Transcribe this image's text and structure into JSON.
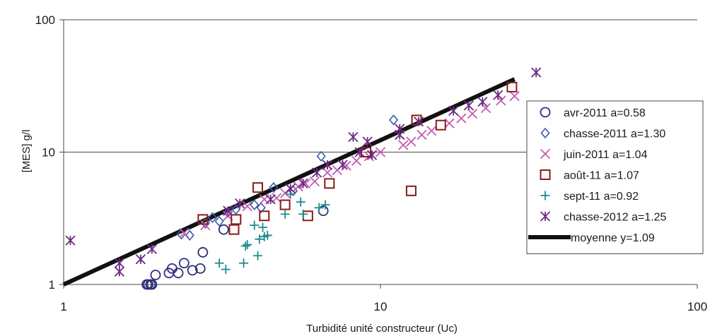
{
  "chart_data": {
    "type": "scatter",
    "xlabel": "Turbidité unité constructeur (Uc)",
    "ylabel": "[MES] g/l",
    "xscale": "log",
    "yscale": "log",
    "xlim": [
      1,
      100
    ],
    "ylim": [
      1,
      100
    ],
    "x_ticks": [
      "1",
      "10",
      "100"
    ],
    "y_ticks": [
      "1",
      "10",
      "100"
    ],
    "grid": "horizontal",
    "legend": "right",
    "series": [
      {
        "name": "avr-2011 a=0.58",
        "marker": "circle",
        "color": "#2e2e7a",
        "points": [
          [
            1.83,
            1.0
          ],
          [
            1.85,
            1.0
          ],
          [
            1.88,
            1.0
          ],
          [
            1.9,
            1.0
          ],
          [
            1.95,
            1.18
          ],
          [
            2.15,
            1.22
          ],
          [
            2.2,
            1.32
          ],
          [
            2.3,
            1.22
          ],
          [
            2.4,
            1.45
          ],
          [
            2.55,
            1.28
          ],
          [
            2.7,
            1.32
          ],
          [
            2.75,
            1.75
          ],
          [
            3.2,
            2.6
          ],
          [
            6.6,
            3.6
          ]
        ]
      },
      {
        "name": "chasse-2011 a=1.30",
        "marker": "diamond",
        "color": "#3a5ca8",
        "points": [
          [
            2.35,
            2.4
          ],
          [
            2.5,
            2.35
          ],
          [
            2.8,
            2.9
          ],
          [
            2.95,
            3.2
          ],
          [
            3.1,
            3.0
          ],
          [
            3.3,
            3.5
          ],
          [
            3.5,
            3.7
          ],
          [
            4.0,
            4.0
          ],
          [
            4.2,
            3.8
          ],
          [
            4.6,
            5.4
          ],
          [
            5.3,
            5.1
          ],
          [
            6.5,
            9.3
          ],
          [
            11.0,
            17.5
          ]
        ]
      },
      {
        "name": "juin-2011 a=1.04",
        "marker": "x",
        "color": "#c45ab3",
        "points": [
          [
            2.4,
            2.45
          ],
          [
            2.8,
            2.8
          ],
          [
            3.3,
            3.3
          ],
          [
            3.8,
            3.9
          ],
          [
            4.3,
            4.4
          ],
          [
            4.7,
            4.5
          ],
          [
            5.0,
            4.9
          ],
          [
            5.5,
            5.5
          ],
          [
            5.8,
            5.8
          ],
          [
            6.2,
            6.0
          ],
          [
            6.8,
            7.0
          ],
          [
            7.3,
            7.3
          ],
          [
            7.8,
            7.9
          ],
          [
            8.4,
            8.6
          ],
          [
            9.2,
            9.3
          ],
          [
            10.0,
            10.0
          ],
          [
            11.8,
            11.3
          ],
          [
            12.5,
            12.0
          ],
          [
            13.5,
            13.5
          ],
          [
            14.5,
            14.5
          ],
          [
            16.5,
            16.5
          ],
          [
            18.0,
            18.0
          ],
          [
            19.5,
            19.5
          ],
          [
            21.5,
            21.5
          ],
          [
            24.0,
            24.5
          ],
          [
            26.5,
            26.5
          ]
        ]
      },
      {
        "name": "août-11 a=1.07",
        "marker": "square",
        "color": "#8b1a1a",
        "points": [
          [
            2.75,
            3.1
          ],
          [
            3.5,
            3.1
          ],
          [
            3.45,
            2.6
          ],
          [
            4.1,
            5.4
          ],
          [
            4.3,
            3.3
          ],
          [
            5.0,
            4.0
          ],
          [
            5.9,
            3.3
          ],
          [
            6.9,
            5.8
          ],
          [
            9.0,
            10.0
          ],
          [
            12.5,
            5.1
          ],
          [
            13.0,
            17.5
          ],
          [
            15.5,
            16.0
          ],
          [
            26.0,
            31.0
          ]
        ]
      },
      {
        "name": "sept-11 a=0.92",
        "marker": "plus",
        "color": "#1f8a8a",
        "points": [
          [
            3.1,
            1.45
          ],
          [
            3.25,
            1.3
          ],
          [
            3.7,
            1.45
          ],
          [
            3.8,
            2.0
          ],
          [
            3.75,
            1.95
          ],
          [
            4.0,
            2.8
          ],
          [
            4.15,
            2.2
          ],
          [
            4.25,
            2.7
          ],
          [
            4.3,
            2.3
          ],
          [
            4.4,
            2.35
          ],
          [
            4.1,
            1.65
          ],
          [
            5.0,
            3.4
          ],
          [
            5.2,
            4.8
          ],
          [
            5.6,
            4.2
          ],
          [
            5.7,
            3.4
          ],
          [
            6.4,
            3.8
          ],
          [
            6.7,
            4.0
          ]
        ]
      },
      {
        "name": "chasse-2012 a=1.25",
        "marker": "asterisk",
        "color": "#6b2a80",
        "points": [
          [
            1.05,
            2.15
          ],
          [
            1.5,
            1.25
          ],
          [
            1.5,
            1.45
          ],
          [
            1.75,
            1.55
          ],
          [
            1.9,
            1.85
          ],
          [
            3.3,
            3.6
          ],
          [
            3.6,
            4.1
          ],
          [
            4.5,
            4.4
          ],
          [
            5.2,
            5.3
          ],
          [
            5.7,
            5.8
          ],
          [
            6.3,
            7.0
          ],
          [
            6.8,
            8.0
          ],
          [
            7.6,
            8.0
          ],
          [
            8.2,
            13.0
          ],
          [
            8.6,
            10.0
          ],
          [
            9.1,
            12.0
          ],
          [
            9.4,
            9.5
          ],
          [
            11.5,
            13.5
          ],
          [
            11.5,
            15.0
          ],
          [
            13.2,
            17.0
          ],
          [
            17.0,
            20.5
          ],
          [
            19.0,
            22.5
          ],
          [
            21.0,
            24.0
          ],
          [
            23.5,
            27.0
          ],
          [
            31.0,
            40.0
          ]
        ]
      }
    ],
    "reference_line": {
      "name": "moyenne y=1.09",
      "color": "#111111",
      "exponent": 1.09,
      "x_range": [
        1,
        26.5
      ]
    }
  }
}
